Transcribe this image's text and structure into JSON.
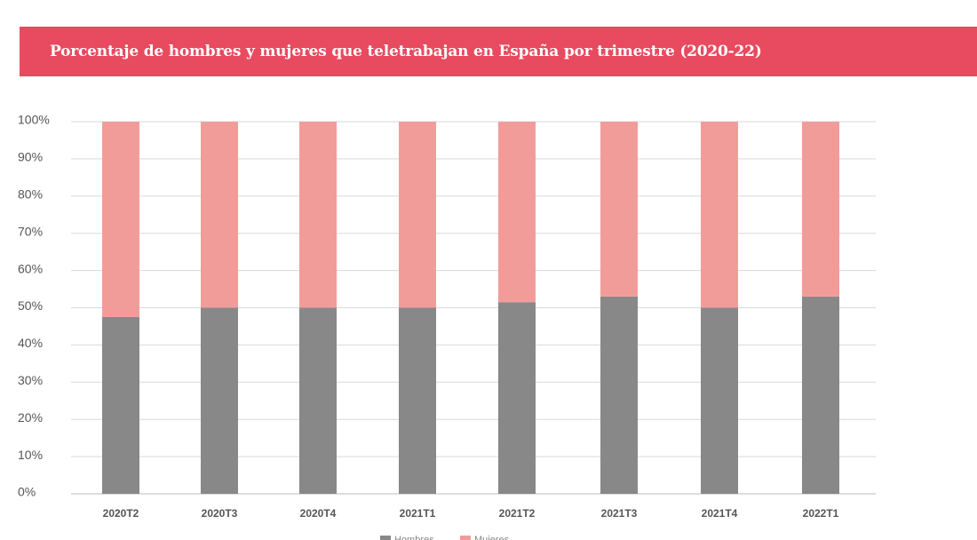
{
  "title_bar": {
    "background": "#e84a5f"
  },
  "chart_data": {
    "type": "bar",
    "stacked": true,
    "title": "Porcentaje de hombres y mujeres que teletrabajan en España por trimestre (2020-22)",
    "categories": [
      "2020T2",
      "2020T3",
      "2020T4",
      "2021T1",
      "2021T2",
      "2021T3",
      "2021T4",
      "2022T1"
    ],
    "series": [
      {
        "name": "Hombres",
        "color": "#888888",
        "values": [
          47.5,
          50,
          50,
          50,
          51.5,
          53,
          50,
          53
        ]
      },
      {
        "name": "Mujeres",
        "color": "#f29c9a",
        "values": [
          52.5,
          50,
          50,
          50,
          48.5,
          47,
          50,
          47
        ]
      }
    ],
    "ylim": [
      0,
      100
    ],
    "yticks": [
      "0%",
      "10%",
      "20%",
      "30%",
      "40%",
      "50%",
      "60%",
      "70%",
      "80%",
      "90%",
      "100%"
    ],
    "grid": true,
    "legend_position": "bottom"
  }
}
